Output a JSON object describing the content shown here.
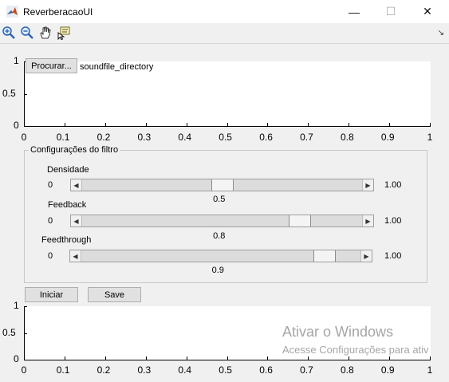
{
  "window": {
    "title": "ReverberacaoUI",
    "minimize_glyph": "—",
    "maximize_glyph": "☐",
    "close_glyph": "✕"
  },
  "toolbar": {
    "icons": [
      "zoom-in-icon",
      "zoom-out-icon",
      "pan-hand-icon",
      "data-cursor-icon"
    ],
    "dock_glyph": "↘"
  },
  "top_axes": {
    "yticks": [
      "1",
      "0.5",
      "0"
    ],
    "xticks": [
      "0",
      "0.1",
      "0.2",
      "0.3",
      "0.4",
      "0.5",
      "0.6",
      "0.7",
      "0.8",
      "0.9",
      "1"
    ]
  },
  "file": {
    "browse_label": "Procurar...",
    "directory_text": "soundfile_directory"
  },
  "filter_panel": {
    "title": "Configurações do filtro",
    "sliders": [
      {
        "label": "Densidade",
        "min_label": "0",
        "max_label": "1.00",
        "value_label": "0.5",
        "value": 0.5
      },
      {
        "label": "Feedback",
        "min_label": "0",
        "max_label": "1.00",
        "value_label": "0.8",
        "value": 0.8
      },
      {
        "label": "Feedthrough",
        "min_label": "0",
        "max_label": "1.00",
        "value_label": "0.9",
        "value": 0.9
      }
    ]
  },
  "actions": {
    "start_label": "Iniciar",
    "save_label": "Save"
  },
  "bottom_axes": {
    "yticks": [
      "1",
      "0.5",
      "0"
    ],
    "xticks": [
      "0",
      "0.1",
      "0.2",
      "0.3",
      "0.4",
      "0.5",
      "0.6",
      "0.7",
      "0.8",
      "0.9",
      "1"
    ]
  },
  "activation_watermark": {
    "line1": "Ativar o Windows",
    "line2": "Acesse Configurações para ativ"
  }
}
